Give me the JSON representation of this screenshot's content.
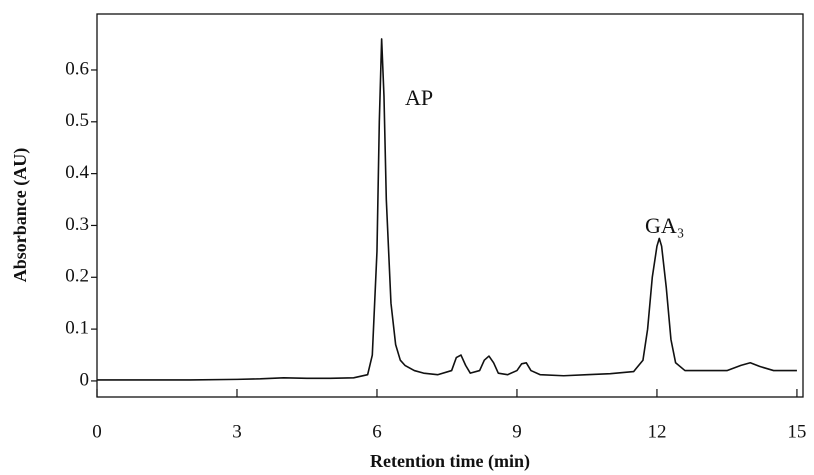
{
  "chart_data": {
    "type": "line",
    "xlabel": "Retention time (min)",
    "ylabel": "Absorbance (AU)",
    "annotations": [
      "AP",
      "GA₃"
    ],
    "x": [
      0,
      1,
      2,
      3,
      3.5,
      4,
      4.5,
      5,
      5.5,
      5.8,
      5.9,
      6.0,
      6.05,
      6.1,
      6.15,
      6.2,
      6.3,
      6.4,
      6.5,
      6.6,
      6.8,
      7.0,
      7.3,
      7.6,
      7.7,
      7.8,
      7.9,
      8.0,
      8.2,
      8.3,
      8.4,
      8.5,
      8.6,
      8.8,
      9.0,
      9.1,
      9.2,
      9.3,
      9.5,
      10,
      10.5,
      11,
      11.5,
      11.7,
      11.8,
      11.9,
      12.0,
      12.05,
      12.1,
      12.2,
      12.3,
      12.4,
      12.6,
      13,
      13.5,
      13.8,
      14,
      14.2,
      14.5,
      15
    ],
    "series": [
      {
        "color": "#111111",
        "values": [
          0.002,
          0.002,
          0.002,
          0.003,
          0.004,
          0.006,
          0.005,
          0.005,
          0.006,
          0.012,
          0.05,
          0.25,
          0.5,
          0.66,
          0.55,
          0.35,
          0.15,
          0.07,
          0.04,
          0.03,
          0.02,
          0.015,
          0.012,
          0.02,
          0.045,
          0.05,
          0.03,
          0.015,
          0.02,
          0.04,
          0.048,
          0.035,
          0.015,
          0.012,
          0.02,
          0.033,
          0.035,
          0.02,
          0.012,
          0.01,
          0.012,
          0.014,
          0.018,
          0.04,
          0.1,
          0.2,
          0.26,
          0.275,
          0.26,
          0.18,
          0.08,
          0.035,
          0.02,
          0.02,
          0.02,
          0.03,
          0.035,
          0.028,
          0.02,
          0.02
        ]
      }
    ],
    "xlim": [
      0,
      15.13
    ],
    "ylim": [
      -0.031,
      0.708
    ],
    "xticks": [
      0,
      3,
      6,
      9,
      12,
      15
    ],
    "yticks": [
      0,
      0.1,
      0.2,
      0.3,
      0.4,
      0.5,
      0.6
    ]
  }
}
